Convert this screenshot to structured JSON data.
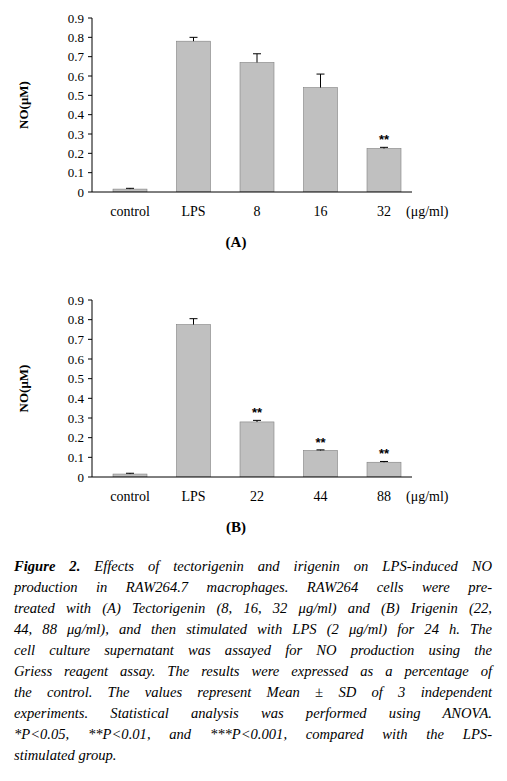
{
  "chart_data": [
    {
      "type": "bar",
      "panel": "(A)",
      "y_label": "NO(μM)",
      "x_unit": "(μg/ml)",
      "categories": [
        "control",
        "LPS",
        "8",
        "16",
        "32"
      ],
      "values": [
        0.015,
        0.78,
        0.67,
        0.54,
        0.225
      ],
      "errors": [
        0.004,
        0.02,
        0.045,
        0.07,
        0.006
      ],
      "significance": [
        null,
        null,
        null,
        null,
        "**"
      ],
      "color": "#c0c0c0",
      "ylim": [
        0,
        0.9
      ],
      "yticks": [
        0,
        0.1,
        0.2,
        0.3,
        0.4,
        0.5,
        0.6,
        0.7,
        0.8,
        0.9
      ]
    },
    {
      "type": "bar",
      "panel": "(B)",
      "y_label": "NO(μM)",
      "x_unit": "(μg/ml)",
      "categories": [
        "control",
        "LPS",
        "22",
        "44",
        "88"
      ],
      "values": [
        0.015,
        0.775,
        0.28,
        0.135,
        0.075
      ],
      "errors": [
        0.004,
        0.03,
        0.008,
        0.003,
        0.004
      ],
      "significance": [
        null,
        null,
        "**",
        "**",
        "**"
      ],
      "color": "#c0c0c0",
      "ylim": [
        0,
        0.9
      ],
      "yticks": [
        0,
        0.1,
        0.2,
        0.3,
        0.4,
        0.5,
        0.6,
        0.7,
        0.8,
        0.9
      ]
    }
  ],
  "caption": {
    "label": "Figure 2.",
    "lines": [
      "Effects of tectorigenin and irigenin on LPS-induced NO",
      "production in RAW264.7 macrophages. RAW264 cells were pre-",
      "treated with (A) Tectorigenin (8, 16, 32 μg/ml) and (B) Irigenin (22,",
      "44, 88 μg/ml), and then stimulated with LPS (2 μg/ml) for 24 h. The",
      "cell culture supernatant was assayed for NO production using the",
      "Griess reagent assay. The results were expressed as a percentage of",
      "the control. The values represent Mean ± SD of 3 independent",
      "experiments. Statistical analysis was performed using ANOVA.",
      "*P<0.05, **P<0.01, and ***P<0.001, compared with the LPS-",
      "stimulated group."
    ]
  }
}
